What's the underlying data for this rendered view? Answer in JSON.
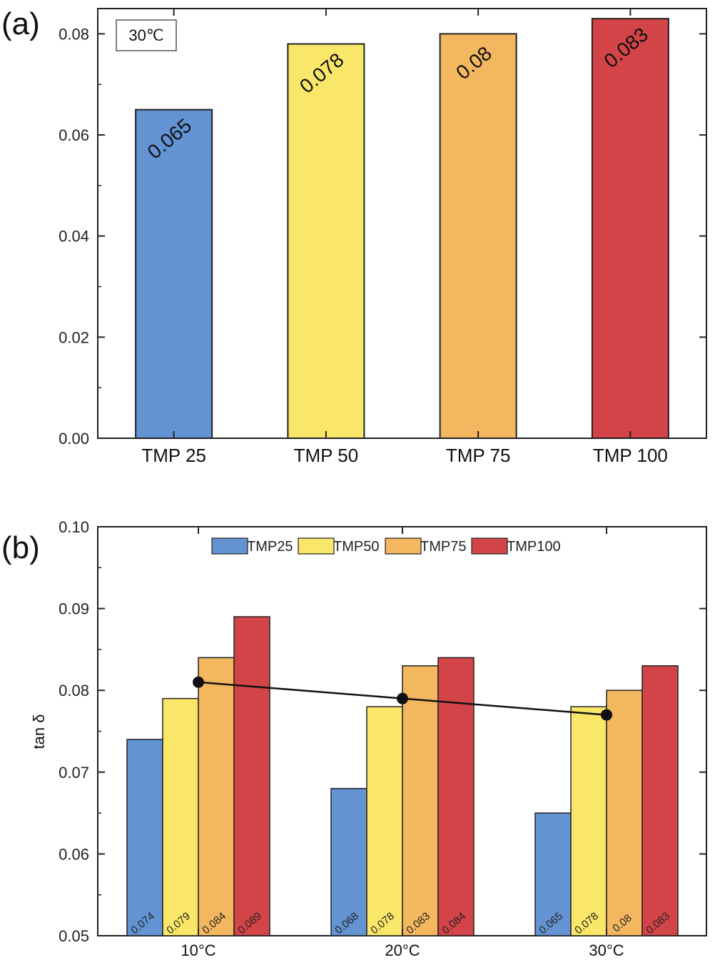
{
  "colors": {
    "TMP25": "#6393d2",
    "TMP50": "#fae769",
    "TMP75": "#f3b75f",
    "TMP100": "#d34448"
  },
  "chart_data": [
    {
      "type": "bar",
      "panel_label": "(a)",
      "annotation_box": "30℃",
      "categories": [
        "TMP 25",
        "TMP 50",
        "TMP 75",
        "TMP 100"
      ],
      "values": [
        0.065,
        0.078,
        0.08,
        0.083
      ],
      "value_labels": [
        "0.065",
        "0.078",
        "0.08",
        "0.083"
      ],
      "series_colors": [
        "TMP25",
        "TMP50",
        "TMP75",
        "TMP100"
      ],
      "ylim": [
        0,
        0.085
      ],
      "yticks": [
        0,
        0.02,
        0.04,
        0.06,
        0.08
      ],
      "ytick_labels": [
        "0.00",
        "0.02",
        "0.04",
        "0.06",
        "0.08"
      ],
      "xlabel": "",
      "ylabel": "",
      "grid": false
    },
    {
      "type": "bar",
      "panel_label": "(b)",
      "categories": [
        "10°C",
        "20°C",
        "30°C"
      ],
      "series": [
        {
          "name": "TMP25",
          "values": [
            0.074,
            0.068,
            0.065
          ],
          "labels": [
            "0.074",
            "0.068",
            "0.065"
          ]
        },
        {
          "name": "TMP50",
          "values": [
            0.079,
            0.078,
            0.078
          ],
          "labels": [
            "0.079",
            "0.078",
            "0.078"
          ]
        },
        {
          "name": "TMP75",
          "values": [
            0.084,
            0.083,
            0.08
          ],
          "labels": [
            "0.084",
            "0.083",
            "0.08"
          ]
        },
        {
          "name": "TMP100",
          "values": [
            0.089,
            0.084,
            0.083
          ],
          "labels": [
            "0.089",
            "0.084",
            "0.083"
          ]
        }
      ],
      "overlay_line": {
        "type": "line",
        "values": [
          0.081,
          0.079,
          0.077
        ]
      },
      "ylim": [
        0.05,
        0.1
      ],
      "yticks": [
        0.05,
        0.06,
        0.07,
        0.08,
        0.09,
        0.1
      ],
      "ytick_labels": [
        "0.05",
        "0.06",
        "0.07",
        "0.08",
        "0.09",
        "0.10"
      ],
      "xlabel": "",
      "ylabel": "tan δ",
      "legend_position": "top-center",
      "grid": false
    }
  ]
}
